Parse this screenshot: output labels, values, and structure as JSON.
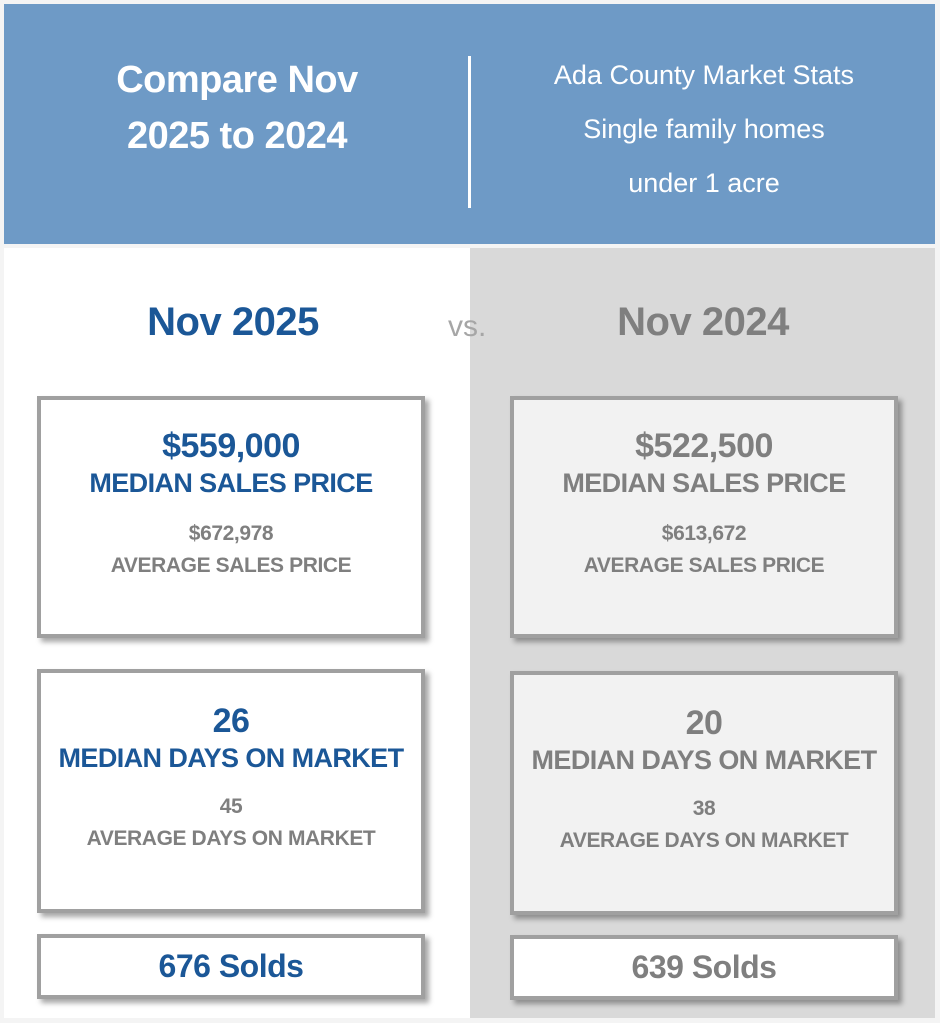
{
  "header": {
    "title_line1": "Compare Nov",
    "title_line2": "2025 to 2024",
    "subtitle_lines": [
      "Ada County Market Stats",
      "Single family homes",
      "under 1 acre"
    ]
  },
  "vs_label": "vs.",
  "colors": {
    "header_bg": "#6e9ac6",
    "current_text": "#1b5797",
    "prior_text": "#7f7f7f",
    "prior_panel": "#d9d9d9"
  },
  "current": {
    "label": "Nov 2025",
    "median_price": "$559,000",
    "median_price_label": "MEDIAN SALES PRICE",
    "avg_price": "$672,978",
    "avg_price_label": "AVERAGE SALES PRICE",
    "median_dom": "26",
    "median_dom_label": "MEDIAN DAYS ON MARKET",
    "avg_dom": "45",
    "avg_dom_label": "AVERAGE DAYS ON MARKET",
    "solds": "676 Solds"
  },
  "prior": {
    "label": "Nov 2024",
    "median_price": "$522,500",
    "median_price_label": "MEDIAN SALES PRICE",
    "avg_price": "$613,672",
    "avg_price_label": "AVERAGE SALES PRICE",
    "median_dom": "20",
    "median_dom_label": "MEDIAN DAYS ON MARKET",
    "avg_dom": "38",
    "avg_dom_label": "AVERAGE DAYS ON MARKET",
    "solds": "639 Solds"
  }
}
